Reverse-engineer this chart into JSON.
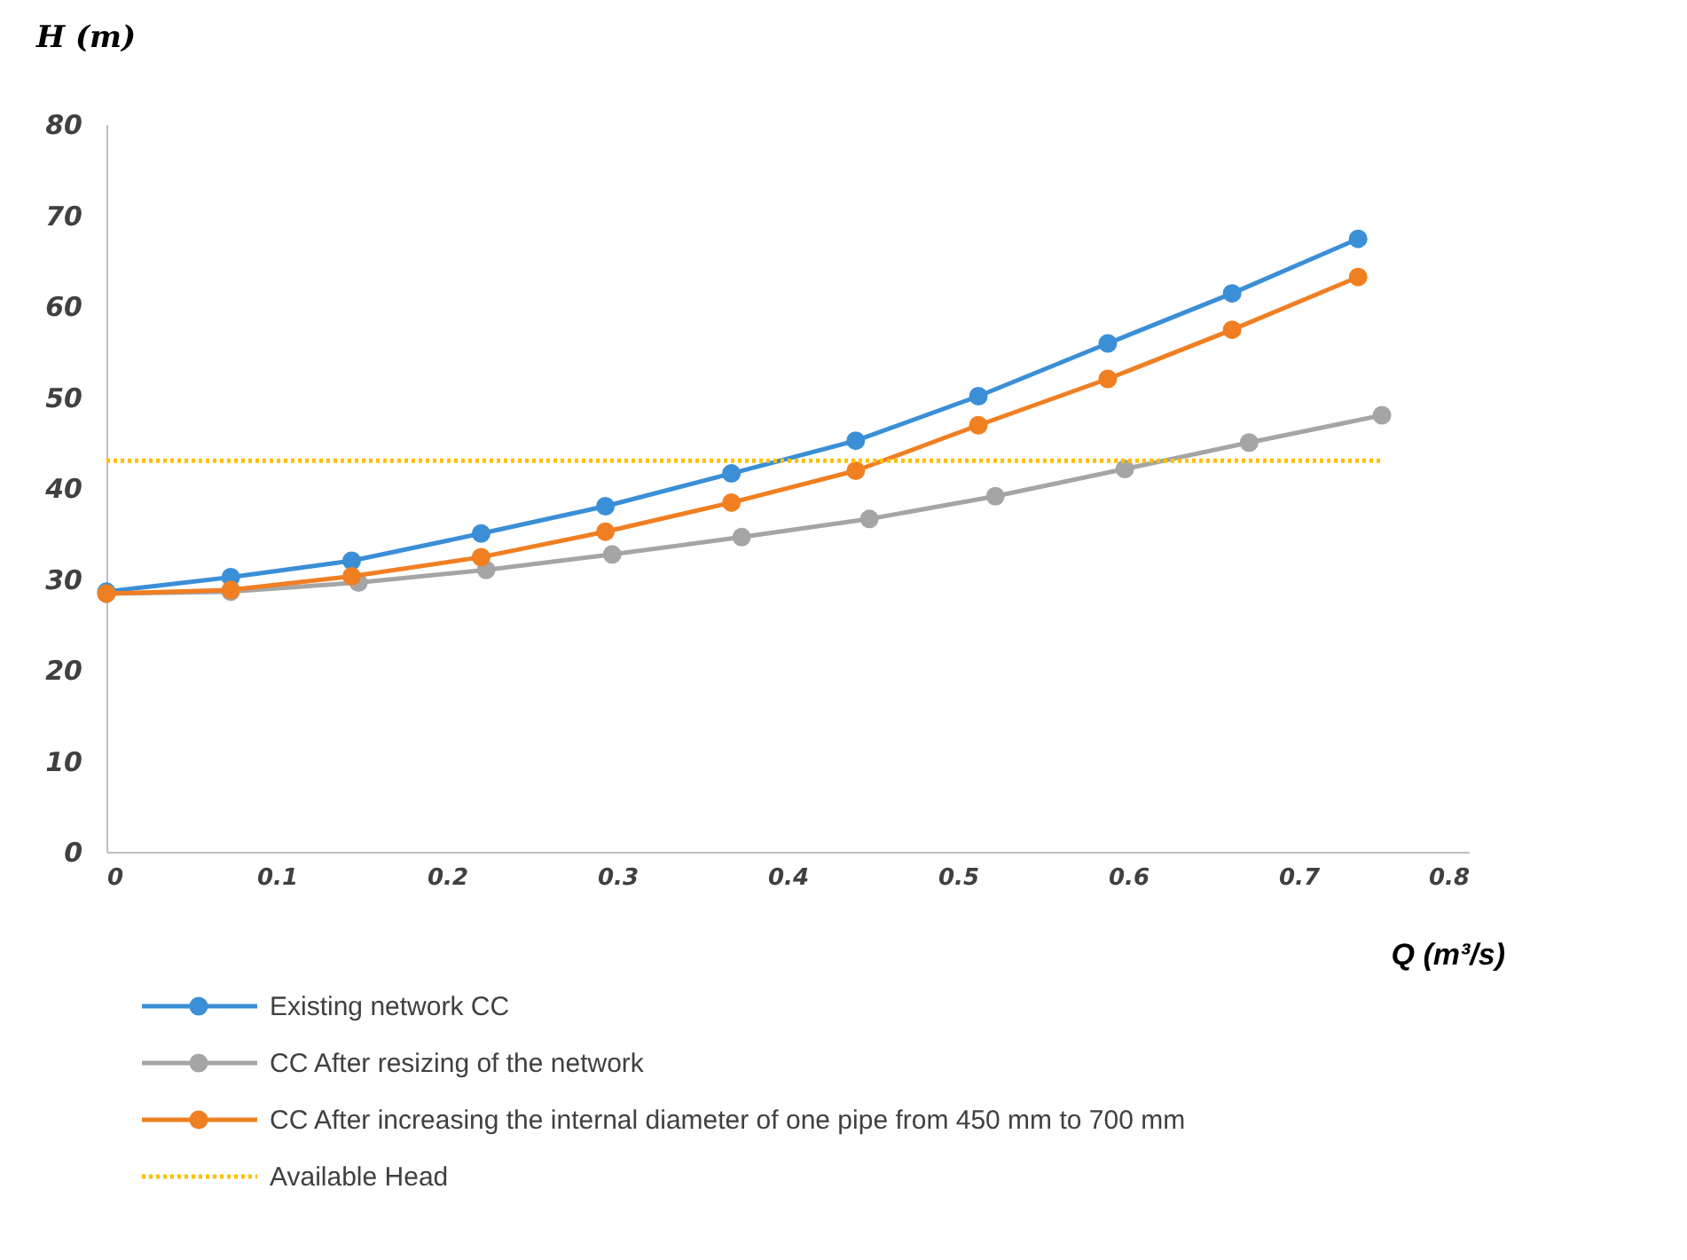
{
  "chart_data": {
    "type": "line",
    "xlabel": "Q  (m³/s)",
    "ylabel": "H (m)",
    "xlim": [
      0,
      0.8
    ],
    "xticks": [
      0,
      0.1,
      0.2,
      0.3,
      0.4,
      0.5,
      0.6,
      0.7,
      0.8
    ],
    "ylim": [
      0,
      80
    ],
    "yticks": [
      0,
      10,
      20,
      30,
      40,
      50,
      60,
      70,
      80
    ],
    "grid": false,
    "legend": "bottom",
    "marker": "circle",
    "line_style": "solid",
    "series": [
      {
        "name": "Existing network CC",
        "color": "#3a8fd6",
        "x": [
          0,
          0.073,
          0.144,
          0.22,
          0.293,
          0.367,
          0.44,
          0.512,
          0.588,
          0.661,
          0.735
        ],
        "values": [
          28.6,
          30.2,
          32.0,
          35.0,
          38.0,
          41.6,
          45.2,
          50.1,
          55.9,
          61.4,
          67.4
        ]
      },
      {
        "name": "CC After resizing of the network",
        "color": "#a5a5a5",
        "x": [
          0,
          0.073,
          0.148,
          0.223,
          0.297,
          0.373,
          0.448,
          0.522,
          0.598,
          0.671,
          0.749
        ],
        "values": [
          28.4,
          28.6,
          29.6,
          31.0,
          32.7,
          34.6,
          36.6,
          39.1,
          42.1,
          45.0,
          48.0
        ]
      },
      {
        "name": "CC After increasing the internal diameter of one pipe from 450 mm to 700 mm",
        "color": "#f07f22",
        "x": [
          0,
          0.073,
          0.144,
          0.22,
          0.293,
          0.367,
          0.44,
          0.512,
          0.588,
          0.661,
          0.735
        ],
        "values": [
          28.4,
          28.8,
          30.3,
          32.4,
          35.2,
          38.4,
          41.9,
          46.9,
          52.0,
          57.4,
          63.2
        ]
      },
      {
        "name": "Available Head",
        "color": "#ffc000",
        "x": [
          0,
          0.749
        ],
        "values": [
          43.0,
          43.0
        ],
        "marker": "none",
        "line_style": "dotted"
      }
    ]
  }
}
